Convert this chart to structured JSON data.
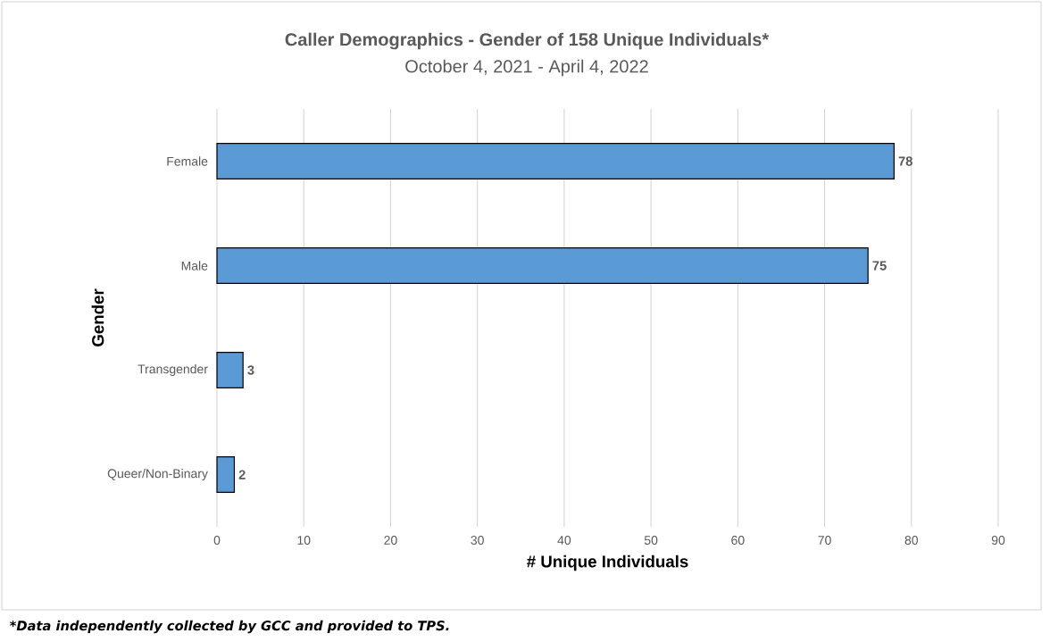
{
  "chart_data": {
    "type": "bar",
    "orientation": "horizontal",
    "title": "Caller Demographics - Gender of 158 Unique Individuals*",
    "subtitle": "October 4, 2021 - April 4, 2022",
    "xlabel": "# Unique Individuals",
    "ylabel": "Gender",
    "categories": [
      "Female",
      "Male",
      "Transgender",
      "Queer/Non-Binary"
    ],
    "values": [
      78,
      75,
      3,
      2
    ],
    "color": "#5b9bd5",
    "xlim": [
      0,
      90
    ],
    "xticks": [
      0,
      10,
      20,
      30,
      40,
      50,
      60,
      70,
      80,
      90
    ],
    "grid": "x",
    "data_labels": true,
    "annotations": [
      "*Data independently collected by GCC and provided to TPS."
    ]
  }
}
